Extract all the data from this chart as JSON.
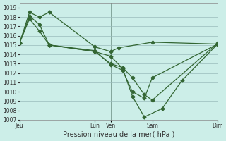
{
  "xlabel": "Pression niveau de la mer( hPa )",
  "ylim": [
    1007,
    1019.5
  ],
  "background_color": "#cceee8",
  "grid_color": "#99bbbb",
  "line_color": "#336633",
  "xtick_labels": [
    "Jeu",
    "Lun",
    "Ven",
    "Sam",
    "Dim"
  ],
  "xtick_positions": [
    0.0,
    0.38,
    0.46,
    0.67,
    1.0
  ],
  "ytick_values": [
    1007,
    1008,
    1009,
    1010,
    1011,
    1012,
    1013,
    1014,
    1015,
    1016,
    1017,
    1018,
    1019
  ],
  "vlines_x": [
    0.38,
    0.46,
    0.67
  ],
  "series1_x": [
    0.0,
    0.05,
    0.1,
    0.15,
    0.38,
    0.46,
    0.5,
    0.67,
    1.0
  ],
  "series1_y": [
    1015.2,
    1018.5,
    1018.0,
    1018.5,
    1014.8,
    1014.3,
    1014.7,
    1015.3,
    1015.1
  ],
  "series2_x": [
    0.0,
    0.05,
    0.1,
    0.15,
    0.38,
    0.46,
    0.52,
    0.57,
    0.63,
    0.67,
    1.0
  ],
  "series2_y": [
    1015.2,
    1018.1,
    1017.2,
    1015.0,
    1014.3,
    1013.0,
    1012.6,
    1011.5,
    1009.7,
    1009.1,
    1015.2
  ],
  "series3_x": [
    0.0,
    0.05,
    0.1,
    0.15,
    0.38,
    0.46,
    0.52,
    0.57,
    0.63,
    0.67,
    1.0
  ],
  "series3_y": [
    1015.2,
    1017.8,
    1016.5,
    1015.0,
    1014.4,
    1012.9,
    1012.3,
    1010.0,
    1009.3,
    1011.5,
    1015.1
  ],
  "series4_x": [
    0.15,
    0.38,
    0.46,
    0.52,
    0.57,
    0.63,
    0.72,
    0.82,
    1.0
  ],
  "series4_y": [
    1015.0,
    1014.3,
    1013.8,
    1012.5,
    1009.5,
    1007.3,
    1008.2,
    1011.2,
    1015.1
  ],
  "xmin": 0.0,
  "xmax": 1.0,
  "ylabel_fontsize": 5.5,
  "xlabel_fontsize": 7,
  "tick_labelsize": 5.5
}
